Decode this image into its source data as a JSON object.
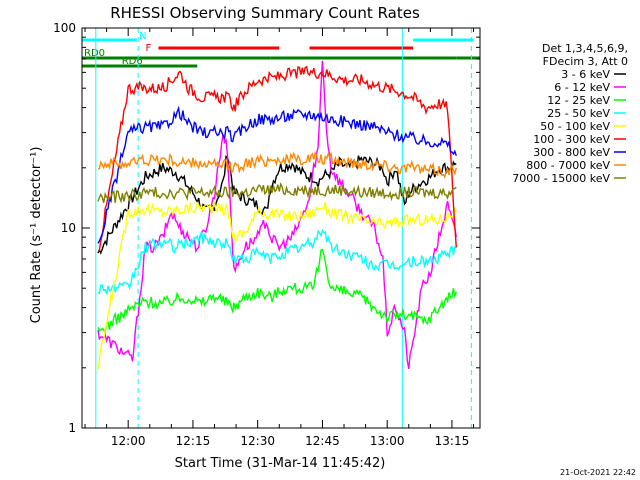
{
  "chart_data": {
    "type": "line",
    "title": "RHESSI Observing Summary Count Rates",
    "xlabel": "Start Time (31-Mar-14 11:45:42)",
    "ylabel": "Count Rate (s⁻¹ detector⁻¹)",
    "y_scale": "log",
    "ylim": [
      1,
      100
    ],
    "xlim_minutes": [
      -10.7,
      81.5
    ],
    "x_ticks": [
      {
        "label": "12:00",
        "minute": 0
      },
      {
        "label": "12:15",
        "minute": 15
      },
      {
        "label": "12:30",
        "minute": 30
      },
      {
        "label": "12:45",
        "minute": 45
      },
      {
        "label": "13:00",
        "minute": 60
      },
      {
        "label": "13:15",
        "minute": 75
      }
    ],
    "y_ticks": [
      {
        "label": "1",
        "value": 1
      },
      {
        "label": "10",
        "value": 10
      },
      {
        "label": "100",
        "value": 100
      }
    ],
    "legend_header": [
      "Det 1,3,4,5,6,9,",
      "FDecim 3, Att 0"
    ],
    "legend_position": "right",
    "series": [
      {
        "name": "3 - 6 keV",
        "color": "#000000",
        "points": [
          [
            -7,
            7.5
          ],
          [
            4,
            18
          ],
          [
            8,
            20
          ],
          [
            11,
            19
          ],
          [
            13,
            17
          ],
          [
            15,
            15
          ],
          [
            16,
            14
          ],
          [
            18,
            12
          ],
          [
            20,
            13
          ],
          [
            22,
            17
          ],
          [
            23,
            24
          ],
          [
            24.5,
            15
          ],
          [
            27,
            14
          ],
          [
            30,
            13
          ],
          [
            32,
            12
          ],
          [
            33,
            16
          ],
          [
            35,
            20
          ],
          [
            38,
            21
          ],
          [
            40,
            19
          ],
          [
            42,
            18
          ],
          [
            43,
            18
          ],
          [
            44,
            17
          ],
          [
            45,
            18
          ],
          [
            47,
            19
          ],
          [
            49,
            21
          ],
          [
            51,
            20
          ],
          [
            54,
            22
          ],
          [
            57,
            21
          ],
          [
            59,
            20
          ],
          [
            60,
            17
          ],
          [
            62,
            20
          ],
          [
            64,
            13
          ],
          [
            65,
            15
          ],
          [
            68,
            17
          ],
          [
            70,
            18
          ],
          [
            72,
            20
          ],
          [
            74,
            20
          ],
          [
            76,
            21
          ]
        ]
      },
      {
        "name": "6 - 12 keV",
        "color": "#ff00ff",
        "points": [
          [
            -7,
            3
          ],
          [
            1,
            2.2
          ],
          [
            4,
            8
          ],
          [
            6,
            8
          ],
          [
            8,
            9
          ],
          [
            10,
            12
          ],
          [
            12,
            10
          ],
          [
            14,
            9
          ],
          [
            16,
            8
          ],
          [
            18,
            10
          ],
          [
            20,
            15
          ],
          [
            22,
            30
          ],
          [
            23,
            24
          ],
          [
            24.5,
            6
          ],
          [
            27,
            8
          ],
          [
            30,
            9
          ],
          [
            32,
            11
          ],
          [
            33,
            9
          ],
          [
            35,
            8
          ],
          [
            38,
            9
          ],
          [
            40,
            11
          ],
          [
            42,
            14
          ],
          [
            43,
            20
          ],
          [
            44,
            25
          ],
          [
            45,
            70
          ],
          [
            46,
            30
          ],
          [
            47,
            20
          ],
          [
            49,
            17
          ],
          [
            51,
            15
          ],
          [
            54,
            12
          ],
          [
            57,
            10
          ],
          [
            59,
            7
          ],
          [
            60,
            3
          ],
          [
            62,
            4
          ],
          [
            64,
            3
          ],
          [
            65,
            2
          ],
          [
            68,
            5
          ],
          [
            70,
            6
          ],
          [
            72,
            9
          ],
          [
            74,
            13
          ],
          [
            76,
            9
          ]
        ]
      },
      {
        "name": "12 - 25 keV",
        "color": "#00ff00",
        "points": [
          [
            -7,
            3
          ],
          [
            1,
            4
          ],
          [
            4,
            4.3
          ],
          [
            8,
            4.2
          ],
          [
            11,
            4.4
          ],
          [
            14,
            4.5
          ],
          [
            17,
            4.2
          ],
          [
            20,
            4.6
          ],
          [
            23,
            4.2
          ],
          [
            24.5,
            4
          ],
          [
            27,
            4.5
          ],
          [
            30,
            4.8
          ],
          [
            33,
            4.5
          ],
          [
            36,
            5
          ],
          [
            40,
            5
          ],
          [
            43,
            5
          ],
          [
            45,
            8
          ],
          [
            47,
            5
          ],
          [
            50,
            4.8
          ],
          [
            54,
            4.5
          ],
          [
            57,
            4
          ],
          [
            60,
            3.6
          ],
          [
            63,
            3.7
          ],
          [
            66,
            3.6
          ],
          [
            69,
            3.4
          ],
          [
            72,
            4
          ],
          [
            74,
            4.5
          ],
          [
            76,
            4.8
          ]
        ]
      },
      {
        "name": "25 - 50 keV",
        "color": "#00ffff",
        "points": [
          [
            -7,
            5
          ],
          [
            0,
            5
          ],
          [
            4,
            8
          ],
          [
            8,
            8.5
          ],
          [
            11,
            8
          ],
          [
            14,
            8.5
          ],
          [
            17,
            9
          ],
          [
            20,
            8.5
          ],
          [
            23,
            8.3
          ],
          [
            24.5,
            7
          ],
          [
            27,
            7
          ],
          [
            30,
            7.5
          ],
          [
            33,
            7
          ],
          [
            36,
            7.5
          ],
          [
            40,
            8
          ],
          [
            43,
            8.5
          ],
          [
            45,
            10
          ],
          [
            47,
            8
          ],
          [
            50,
            7.5
          ],
          [
            54,
            7
          ],
          [
            57,
            6.5
          ],
          [
            60,
            6.5
          ],
          [
            63,
            6.5
          ],
          [
            66,
            6.8
          ],
          [
            69,
            6.8
          ],
          [
            72,
            7
          ],
          [
            74,
            7.5
          ],
          [
            76,
            8
          ]
        ]
      },
      {
        "name": "50 - 100 keV",
        "color": "#ffff00",
        "points": [
          [
            -7,
            2
          ],
          [
            0,
            12
          ],
          [
            4,
            12.5
          ],
          [
            8,
            12
          ],
          [
            11,
            12.3
          ],
          [
            14,
            12.5
          ],
          [
            17,
            12.8
          ],
          [
            20,
            12.5
          ],
          [
            23,
            12.3
          ],
          [
            24.5,
            9
          ],
          [
            27,
            9.5
          ],
          [
            30,
            12
          ],
          [
            33,
            11.8
          ],
          [
            36,
            11.5
          ],
          [
            40,
            11.5
          ],
          [
            43,
            12
          ],
          [
            45,
            13
          ],
          [
            47,
            12
          ],
          [
            50,
            11.5
          ],
          [
            54,
            11
          ],
          [
            57,
            10.5
          ],
          [
            60,
            10.5
          ],
          [
            63,
            10.8
          ],
          [
            66,
            11
          ],
          [
            69,
            11
          ],
          [
            72,
            11
          ],
          [
            74,
            11.5
          ],
          [
            76,
            12
          ]
        ]
      },
      {
        "name": "100 - 300 keV",
        "color": "#ff0000",
        "points": [
          [
            -7,
            7.5
          ],
          [
            0,
            50
          ],
          [
            4,
            50
          ],
          [
            8,
            50
          ],
          [
            10,
            55
          ],
          [
            12,
            60
          ],
          [
            14,
            50
          ],
          [
            17,
            45
          ],
          [
            20,
            45
          ],
          [
            23,
            45
          ],
          [
            24.5,
            40
          ],
          [
            27,
            48
          ],
          [
            30,
            55
          ],
          [
            33,
            56
          ],
          [
            36,
            58
          ],
          [
            40,
            60
          ],
          [
            43,
            60
          ],
          [
            45,
            60
          ],
          [
            47,
            58
          ],
          [
            50,
            55
          ],
          [
            54,
            55
          ],
          [
            57,
            52
          ],
          [
            60,
            50
          ],
          [
            63,
            48
          ],
          [
            66,
            45
          ],
          [
            69,
            40
          ],
          [
            72,
            42
          ],
          [
            74,
            40
          ],
          [
            76,
            8
          ]
        ]
      },
      {
        "name": "300 - 800 keV",
        "color": "#0000ff",
        "points": [
          [
            -7,
            8
          ],
          [
            0,
            30
          ],
          [
            4,
            32
          ],
          [
            8,
            32
          ],
          [
            10,
            35
          ],
          [
            12,
            38
          ],
          [
            14,
            33
          ],
          [
            17,
            30
          ],
          [
            20,
            30
          ],
          [
            23,
            30
          ],
          [
            24.5,
            28
          ],
          [
            27,
            32
          ],
          [
            30,
            35
          ],
          [
            33,
            35
          ],
          [
            36,
            36
          ],
          [
            40,
            37
          ],
          [
            43,
            37
          ],
          [
            45,
            36
          ],
          [
            47,
            35
          ],
          [
            50,
            34
          ],
          [
            54,
            33
          ],
          [
            57,
            32
          ],
          [
            60,
            30
          ],
          [
            63,
            29
          ],
          [
            66,
            28
          ],
          [
            69,
            27
          ],
          [
            72,
            27
          ],
          [
            74,
            26
          ],
          [
            76,
            23
          ]
        ]
      },
      {
        "name": "800 - 7000 keV",
        "color": "#ff8800",
        "points": [
          [
            -7,
            21
          ],
          [
            0,
            21
          ],
          [
            4,
            22
          ],
          [
            8,
            22
          ],
          [
            11,
            21.5
          ],
          [
            14,
            21
          ],
          [
            17,
            21
          ],
          [
            20,
            20.5
          ],
          [
            23,
            20.5
          ],
          [
            24.5,
            20
          ],
          [
            27,
            21
          ],
          [
            30,
            21.5
          ],
          [
            33,
            22
          ],
          [
            36,
            22
          ],
          [
            40,
            22
          ],
          [
            43,
            22.5
          ],
          [
            45,
            22
          ],
          [
            47,
            22
          ],
          [
            50,
            21.5
          ],
          [
            54,
            21
          ],
          [
            57,
            21
          ],
          [
            60,
            20.5
          ],
          [
            63,
            20
          ],
          [
            66,
            20
          ],
          [
            69,
            19.5
          ],
          [
            72,
            19.5
          ],
          [
            74,
            19
          ],
          [
            76,
            20
          ]
        ]
      },
      {
        "name": "7000 - 15000 keV",
        "color": "#808000",
        "points": [
          [
            -7,
            14
          ],
          [
            0,
            14.5
          ],
          [
            4,
            15
          ],
          [
            8,
            15
          ],
          [
            11,
            15
          ],
          [
            14,
            15
          ],
          [
            17,
            15
          ],
          [
            20,
            15
          ],
          [
            23,
            15
          ],
          [
            24.5,
            15
          ],
          [
            27,
            15
          ],
          [
            30,
            15.5
          ],
          [
            33,
            15.5
          ],
          [
            36,
            15.5
          ],
          [
            40,
            15.5
          ],
          [
            43,
            15.5
          ],
          [
            45,
            15.5
          ],
          [
            47,
            15.5
          ],
          [
            50,
            15.5
          ],
          [
            54,
            15
          ],
          [
            57,
            15
          ],
          [
            60,
            15
          ],
          [
            63,
            15
          ],
          [
            66,
            15
          ],
          [
            69,
            15
          ],
          [
            72,
            15
          ],
          [
            74,
            15
          ],
          [
            76,
            16
          ]
        ]
      }
    ],
    "status_bars": [
      {
        "name": "N",
        "color": "#00ffff",
        "label": "N",
        "segments": [
          [
            -10.7,
            2
          ],
          [
            66,
            80
          ]
        ]
      },
      {
        "name": "F",
        "color": "#ff0000",
        "label": "F",
        "segments": [
          [
            7,
            35
          ],
          [
            42,
            66
          ]
        ]
      },
      {
        "name": "RD0",
        "color": "#008000",
        "label": "RD0",
        "segments": [
          [
            -10.7,
            23
          ],
          [
            23,
            33
          ],
          [
            33,
            76
          ],
          [
            76,
            81.5
          ]
        ]
      },
      {
        "name": "RD6",
        "color": "#008000",
        "label": "RD6",
        "segments": [
          [
            -10.7,
            16
          ]
        ]
      }
    ],
    "vertical_markers": [
      {
        "minute": -7.5,
        "color": "#00ffff",
        "style": "solid"
      },
      {
        "minute": 2.3,
        "color": "#00ffff",
        "style": "dashed"
      },
      {
        "minute": 63.5,
        "color": "#00ffff",
        "style": "solid"
      },
      {
        "minute": 79.5,
        "color": "#00ffff",
        "style": "dashed"
      }
    ]
  },
  "footer": {
    "timestamp": "21-Oct-2021 22:42"
  }
}
